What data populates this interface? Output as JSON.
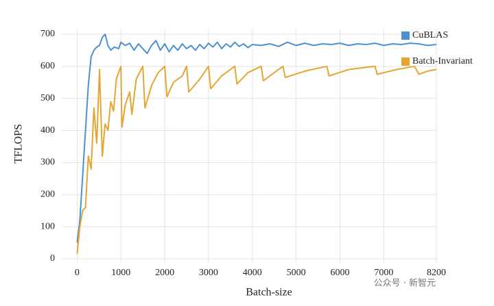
{
  "chart_data": {
    "type": "line",
    "xlabel": "Batch-size",
    "ylabel": "TFLOPS",
    "watermark": "公众号 · 新智元",
    "xlim": [
      -350,
      8200
    ],
    "ylim": [
      -15,
      717
    ],
    "xticks": [
      0,
      1000,
      2000,
      3000,
      4000,
      5000,
      6000,
      7000,
      8200
    ],
    "yticks": [
      0,
      100,
      200,
      300,
      400,
      500,
      600,
      700
    ],
    "grid": true,
    "legend": "upper right",
    "series": [
      {
        "name": "CuBLAS",
        "color": "#4a90d2",
        "x": [
          0,
          64,
          128,
          192,
          256,
          320,
          384,
          448,
          512,
          576,
          640,
          704,
          768,
          850,
          950,
          1000,
          1100,
          1200,
          1300,
          1400,
          1500,
          1600,
          1700,
          1800,
          1900,
          2000,
          2100,
          2200,
          2300,
          2400,
          2500,
          2600,
          2700,
          2800,
          2900,
          3000,
          3100,
          3200,
          3300,
          3400,
          3500,
          3600,
          3700,
          3800,
          3900,
          4000,
          4200,
          4400,
          4600,
          4800,
          5000,
          5200,
          5400,
          5600,
          5800,
          6000,
          6200,
          6400,
          6600,
          6800,
          7000,
          7200,
          7400,
          7600,
          7800,
          8000,
          8200
        ],
        "values": [
          50,
          120,
          260,
          400,
          540,
          630,
          650,
          660,
          665,
          690,
          700,
          665,
          650,
          660,
          655,
          675,
          665,
          672,
          650,
          670,
          655,
          640,
          665,
          680,
          650,
          670,
          645,
          665,
          650,
          670,
          655,
          665,
          650,
          668,
          655,
          672,
          660,
          675,
          655,
          670,
          660,
          675,
          662,
          670,
          658,
          668,
          665,
          670,
          662,
          675,
          665,
          672,
          665,
          670,
          668,
          672,
          665,
          670,
          668,
          672,
          665,
          670,
          668,
          672,
          670,
          665,
          668
        ]
      },
      {
        "name": "Batch-Invariant",
        "color": "#e6a432",
        "x": [
          0,
          64,
          128,
          192,
          256,
          320,
          384,
          448,
          512,
          576,
          640,
          704,
          768,
          832,
          896,
          1000,
          1024,
          1100,
          1200,
          1250,
          1350,
          1500,
          1550,
          1700,
          1850,
          2000,
          2050,
          2200,
          2400,
          2500,
          2550,
          2800,
          3000,
          3050,
          3300,
          3600,
          3650,
          3900,
          4200,
          4250,
          4500,
          4700,
          4750,
          5200,
          5700,
          5750,
          6200,
          6800,
          6850,
          7300,
          7700,
          7800,
          8000,
          8200
        ],
        "values": [
          15,
          100,
          150,
          160,
          320,
          280,
          470,
          360,
          590,
          320,
          420,
          400,
          490,
          460,
          560,
          600,
          410,
          480,
          520,
          450,
          560,
          600,
          470,
          540,
          580,
          600,
          505,
          550,
          570,
          600,
          520,
          560,
          600,
          530,
          570,
          600,
          545,
          580,
          600,
          555,
          580,
          600,
          565,
          585,
          600,
          570,
          590,
          600,
          575,
          590,
          600,
          575,
          585,
          590
        ]
      }
    ]
  }
}
